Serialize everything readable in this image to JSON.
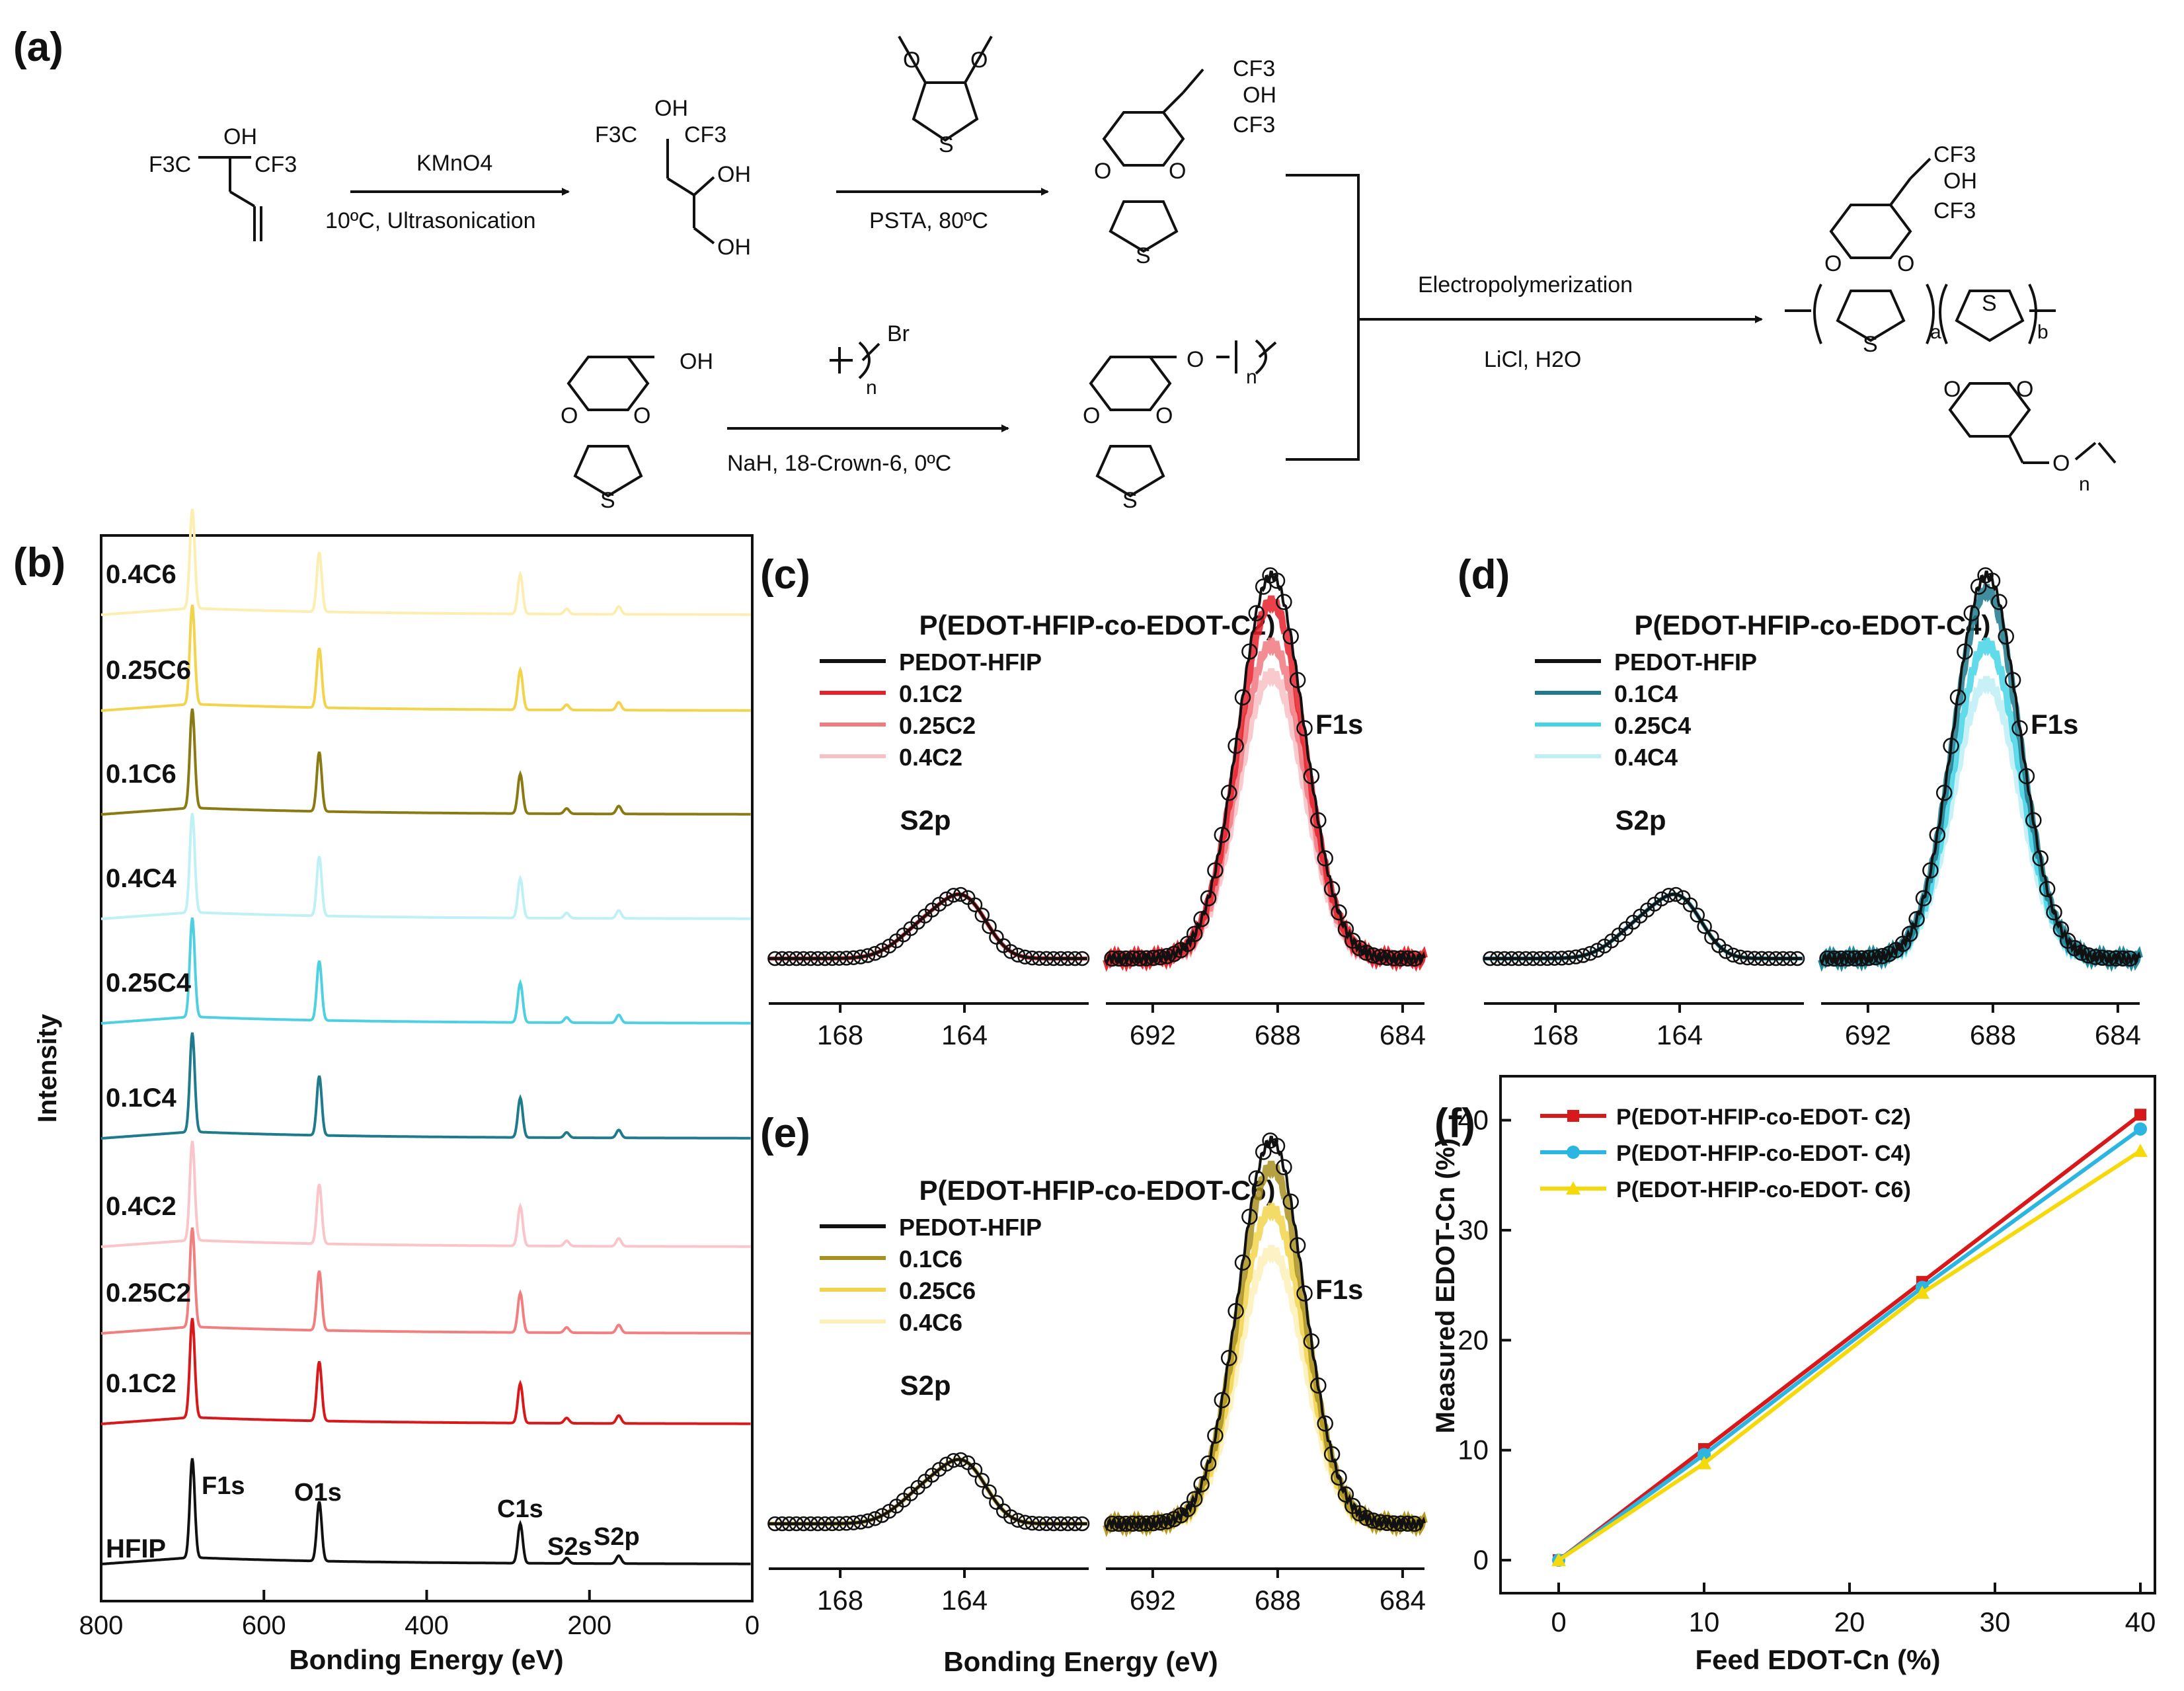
{
  "panel_labels": {
    "a": "(a)",
    "b": "(b)",
    "c": "(c)",
    "d": "(d)",
    "e": "(e)",
    "f": "(f)"
  },
  "scheme": {
    "sm1_top": "OH",
    "sm1_left": "F3C",
    "sm1_right": "CF3",
    "r1_reagent": "KMnO4",
    "r1_cond": "10ºC, Ultrasonication",
    "p1_left": "F3C",
    "p1_top": "OH",
    "p1_right": "CF3",
    "p1_oh1": "OH",
    "p1_oh2": "OH",
    "r2_cond": "PSTA, 80ºC",
    "thiophene_s": "S",
    "ether_o": "O",
    "m1_cf3a": "CF3",
    "m1_oh": "OH",
    "m1_cf3b": "CF3",
    "sm2_oh": "OH",
    "r3_br": "Br",
    "r3_n": "n",
    "r3_cond": "NaH, 18-Crown-6, 0ºC",
    "m2_n": "n",
    "poly_label": "Electropolymerization",
    "poly_cond": "LiCl, H2O",
    "pp_cf3a": "CF3",
    "pp_oh": "OH",
    "pp_cf3b": "CF3",
    "pp_a": "a",
    "pp_b": "b",
    "pp_n": "n"
  },
  "chart_data": [
    {
      "id": "b",
      "type": "line",
      "xlabel": "Bonding Energy (eV)",
      "ylabel": "Intensity",
      "xlim": [
        800,
        0
      ],
      "xticks": [
        800,
        600,
        400,
        200,
        0
      ],
      "peak_annotations": [
        "F1s",
        "O1s",
        "C1s",
        "S2s",
        "S2p"
      ],
      "series": [
        {
          "name": "HFIP",
          "color": "#111111"
        },
        {
          "name": "0.1C2",
          "color": "#d7191c"
        },
        {
          "name": "0.25C2",
          "color": "#f08080"
        },
        {
          "name": "0.4C2",
          "color": "#f9c5c8"
        },
        {
          "name": "0.1C4",
          "color": "#1f7a8c"
        },
        {
          "name": "0.25C4",
          "color": "#4fd0e0"
        },
        {
          "name": "0.4C4",
          "color": "#bff0f5"
        },
        {
          "name": "0.1C6",
          "color": "#8a7a14"
        },
        {
          "name": "0.25C6",
          "color": "#f2d34c"
        },
        {
          "name": "0.4C6",
          "color": "#fbeeb0"
        }
      ],
      "peaks_eV": {
        "F1s": 688,
        "O1s": 532,
        "C1s": 285,
        "S2s": 228,
        "S2p": 164
      }
    },
    {
      "id": "c",
      "type": "line",
      "title": "P(EDOT-HFIP-co-EDOT-C2)",
      "left_xticks": [
        168,
        164
      ],
      "right_xticks": [
        692,
        688,
        684
      ],
      "peak_labels": [
        "S2p",
        "F1s"
      ],
      "legend": [
        {
          "name": "PEDOT-HFIP",
          "color": "#111111"
        },
        {
          "name": "0.1C2",
          "color": "#e8202a"
        },
        {
          "name": "0.25C2",
          "color": "#f07a80"
        },
        {
          "name": "0.4C2",
          "color": "#f7c0c4"
        }
      ],
      "f1s_rel_heights": [
        1.0,
        0.93,
        0.82,
        0.74
      ]
    },
    {
      "id": "d",
      "type": "line",
      "title": "P(EDOT-HFIP-co-EDOT-C4)",
      "left_xticks": [
        168,
        164
      ],
      "right_xticks": [
        692,
        688,
        684
      ],
      "peak_labels": [
        "S2p",
        "F1s"
      ],
      "legend": [
        {
          "name": "PEDOT-HFIP",
          "color": "#111111"
        },
        {
          "name": "0.1C4",
          "color": "#1f7a8c"
        },
        {
          "name": "0.25C4",
          "color": "#45d3e6"
        },
        {
          "name": "0.4C4",
          "color": "#bdeff5"
        }
      ],
      "f1s_rel_heights": [
        1.0,
        0.96,
        0.82,
        0.72
      ]
    },
    {
      "id": "e",
      "type": "line",
      "title": "P(EDOT-HFIP-co-EDOT-C6)",
      "left_xticks": [
        168,
        164
      ],
      "right_xticks": [
        692,
        688,
        684
      ],
      "xlabel": "Bonding Energy (eV)",
      "peak_labels": [
        "S2p",
        "F1s"
      ],
      "legend": [
        {
          "name": "PEDOT-HFIP",
          "color": "#111111"
        },
        {
          "name": "0.1C6",
          "color": "#a89020"
        },
        {
          "name": "0.25C6",
          "color": "#f2d34c"
        },
        {
          "name": "0.4C6",
          "color": "#fbf0b8"
        }
      ],
      "f1s_rel_heights": [
        1.0,
        0.93,
        0.82,
        0.71
      ]
    },
    {
      "id": "f",
      "type": "line",
      "xlabel": "Feed EDOT-Cn (%)",
      "ylabel": "Measured EDOT-Cn (%)",
      "xlim": [
        -4,
        41
      ],
      "ylim": [
        -3,
        44
      ],
      "xticks": [
        0,
        10,
        20,
        30,
        40
      ],
      "yticks": [
        0,
        10,
        20,
        30,
        40
      ],
      "x": [
        0,
        10,
        25,
        40
      ],
      "series": [
        {
          "name": "P(EDOT-HFIP-co-EDOT- C2)",
          "color": "#d7191c",
          "marker": "square",
          "values": [
            0,
            10.1,
            25.3,
            40.5
          ]
        },
        {
          "name": "P(EDOT-HFIP-co-EDOT- C4)",
          "color": "#2bb5e0",
          "marker": "circle",
          "values": [
            0,
            9.6,
            24.8,
            39.2
          ]
        },
        {
          "name": "P(EDOT-HFIP-co-EDOT- C6)",
          "color": "#f5d90a",
          "marker": "triangle",
          "values": [
            0,
            8.8,
            24.3,
            37.2
          ]
        }
      ]
    }
  ]
}
